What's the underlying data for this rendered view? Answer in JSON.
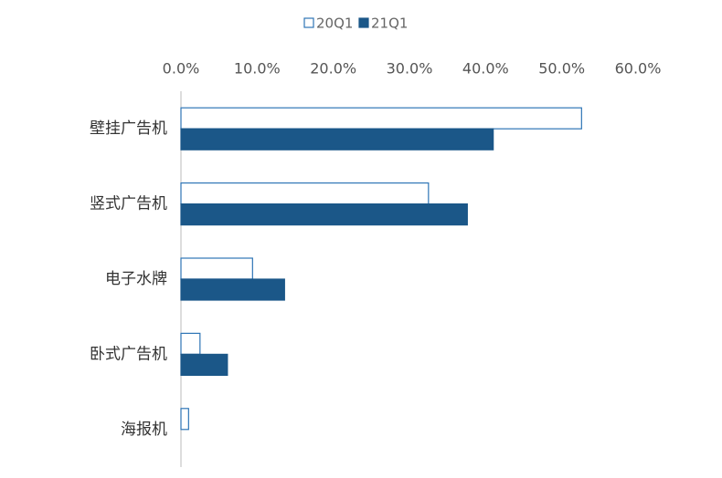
{
  "chart_data": {
    "type": "hbar",
    "categories": [
      "壁挂广告机",
      "竖式广告机",
      "电子水牌",
      "卧式广告机",
      "海报机"
    ],
    "series": [
      {
        "name": "20Q1",
        "color": "#ffffff",
        "stroke": "#2e75b6",
        "values": [
          52.6,
          32.5,
          9.4,
          2.5,
          1.0
        ]
      },
      {
        "name": "21Q1",
        "color": "#1b5788",
        "stroke": "#1b5788",
        "values": [
          41.0,
          37.6,
          13.6,
          6.1,
          0
        ]
      }
    ],
    "xlim": [
      0,
      60
    ],
    "xticks": [
      {
        "value": 0,
        "label": "0.0%"
      },
      {
        "value": 10,
        "label": "10.0%"
      },
      {
        "value": 20,
        "label": "20.0%"
      },
      {
        "value": 30,
        "label": "30.0%"
      },
      {
        "value": 40,
        "label": "40.0%"
      },
      {
        "value": 50,
        "label": "50.0%"
      },
      {
        "value": 60,
        "label": "60.0%"
      }
    ],
    "legend": "top"
  }
}
